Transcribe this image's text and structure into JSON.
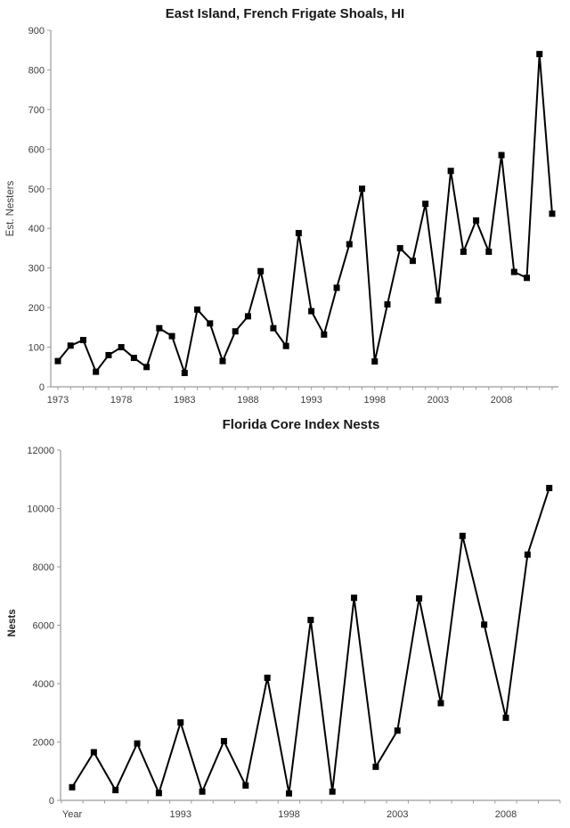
{
  "colors": {
    "series_line": "#000000",
    "marker": "#000000",
    "axis_line": "#9b9b9b",
    "tick_mark": "#9b9b9b",
    "tick_label": "#3d3d3d",
    "title": "#171717"
  },
  "chart_data": [
    {
      "id": "east_island",
      "type": "line",
      "title": "East Island, French Frigate Shoals, HI",
      "ylabel": "Est. Nesters",
      "xlabel": "",
      "marker": "square",
      "grid": false,
      "legend": "none",
      "ylim": [
        0,
        900
      ],
      "ytick_step": 100,
      "x": [
        1973,
        1974,
        1975,
        1976,
        1977,
        1978,
        1979,
        1980,
        1981,
        1982,
        1983,
        1984,
        1985,
        1986,
        1987,
        1988,
        1989,
        1990,
        1991,
        1992,
        1993,
        1994,
        1995,
        1996,
        1997,
        1998,
        1999,
        2000,
        2001,
        2002,
        2003,
        2004,
        2005,
        2006,
        2007,
        2008,
        2009,
        2010,
        2011,
        2012
      ],
      "values": [
        65,
        104,
        118,
        38,
        80,
        100,
        73,
        50,
        148,
        128,
        35,
        195,
        160,
        65,
        140,
        178,
        292,
        148,
        103,
        388,
        191,
        132,
        250,
        360,
        500,
        64,
        208,
        350,
        318,
        462,
        218,
        545,
        341,
        420,
        341,
        585,
        290,
        275,
        840,
        437
      ],
      "xticks": [
        {
          "index": 0,
          "label": "1973"
        },
        {
          "index": 5,
          "label": "1978"
        },
        {
          "index": 10,
          "label": "1983"
        },
        {
          "index": 15,
          "label": "1988"
        },
        {
          "index": 20,
          "label": "1993"
        },
        {
          "index": 25,
          "label": "1998"
        },
        {
          "index": 30,
          "label": "2003"
        },
        {
          "index": 35,
          "label": "2008"
        }
      ]
    },
    {
      "id": "florida_core_index",
      "type": "line",
      "title": "Florida Core Index Nests",
      "ylabel": "Nests",
      "xlabel": "",
      "marker": "square",
      "grid": false,
      "legend": "none",
      "ylim": [
        0,
        12000
      ],
      "ytick_step": 2000,
      "values": [
        450,
        1650,
        350,
        1950,
        250,
        2670,
        300,
        2030,
        510,
        4200,
        240,
        6180,
        300,
        6940,
        1150,
        2390,
        6920,
        3330,
        9060,
        6020,
        2830,
        8420,
        10700
      ],
      "xticks": [
        {
          "index": 0,
          "label": "Year"
        },
        {
          "index": 5,
          "label": "1993"
        },
        {
          "index": 10,
          "label": "1998"
        },
        {
          "index": 15,
          "label": "2003"
        },
        {
          "index": 20,
          "label": "2008"
        }
      ]
    }
  ]
}
